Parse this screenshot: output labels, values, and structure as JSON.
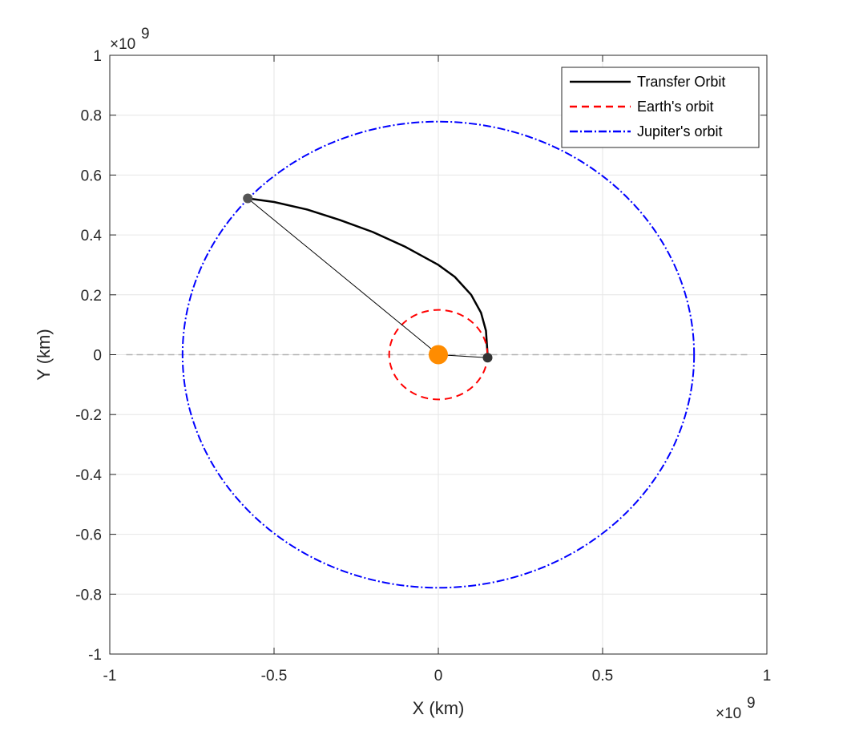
{
  "chart_data": {
    "type": "line",
    "xlabel": "X (km)",
    "ylabel": "Y (km)",
    "xlim": [
      -1,
      1
    ],
    "ylim": [
      -1,
      1
    ],
    "x_scale_label": "×10",
    "x_scale_exp": "9",
    "y_scale_label": "×10",
    "y_scale_exp": "9",
    "unit_multiplier": 1000000000,
    "xticks": [
      -1,
      -0.5,
      0,
      0.5,
      1
    ],
    "xtick_labels": [
      "-1",
      "-0.5",
      "0",
      "0.5",
      "1"
    ],
    "yticks": [
      1,
      0.8,
      0.6,
      0.4,
      0.2,
      0,
      -0.2,
      -0.4,
      -0.6,
      -0.8,
      -1
    ],
    "ytick_labels": [
      "1",
      "0.8",
      "0.6",
      "0.4",
      "0.2",
      "0",
      "-0.2",
      "-0.4",
      "-0.6",
      "-0.8",
      "-1"
    ],
    "grid": true,
    "legend_position": "top-right",
    "series": [
      {
        "name": "Transfer Orbit",
        "color": "#000000",
        "style": "solid",
        "x": [
          0.15,
          0.145,
          0.13,
          0.1,
          0.05,
          0.0,
          -0.1,
          -0.2,
          -0.3,
          -0.4,
          -0.5,
          -0.58
        ],
        "y": [
          0.0,
          0.08,
          0.14,
          0.2,
          0.26,
          0.3,
          0.36,
          0.41,
          0.45,
          0.485,
          0.51,
          0.522
        ]
      },
      {
        "name": "Earth's orbit",
        "color": "#ff0000",
        "style": "dashed",
        "center": [
          0,
          0
        ],
        "radius": 0.1496
      },
      {
        "name": "Jupiter's orbit",
        "color": "#0000ff",
        "style": "dashdot",
        "center": [
          0,
          0
        ],
        "radius": 0.7785
      }
    ],
    "annotations": {
      "sun": {
        "x": 0,
        "y": 0,
        "color": "#ff8c00"
      },
      "departure_point": {
        "x": 0.15,
        "y": -0.01,
        "color": "#333333"
      },
      "arrival_point": {
        "x": -0.58,
        "y": 0.522,
        "color": "#555555"
      },
      "radius_lines": [
        {
          "from": [
            0,
            0
          ],
          "to": [
            0.15,
            -0.01
          ]
        },
        {
          "from": [
            0,
            0
          ],
          "to": [
            -0.58,
            0.522
          ]
        }
      ],
      "reference_line": {
        "y": 0,
        "color": "#b3b3b3",
        "style": "dashed"
      }
    }
  }
}
